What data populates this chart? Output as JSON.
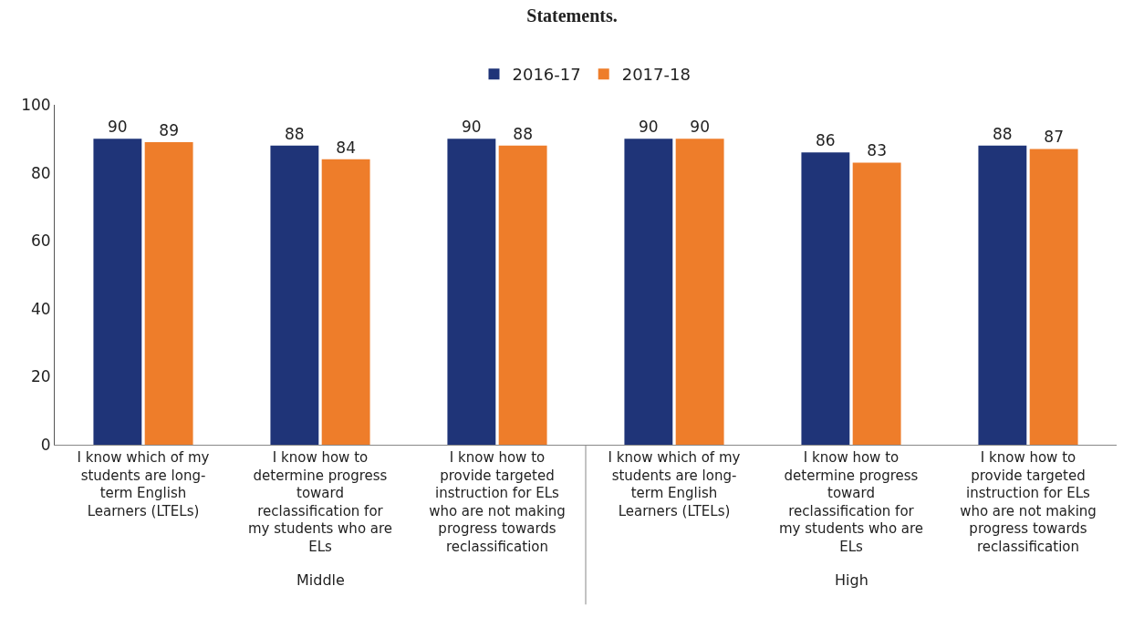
{
  "chart_data": {
    "type": "bar",
    "title": "Statements.",
    "categories": [
      "I know which of my students are long-term English Learners (LTELs)",
      "I know how to determine progress toward reclassification for my students who are ELs",
      "I know how to provide targeted instruction for ELs who are not making progress towards reclassification",
      "I know which of my students are long-term English Learners (LTELs)",
      "I know how to determine progress toward reclassification for my students who are ELs",
      "I know how to provide targeted instruction for ELs who are not making progress towards reclassification"
    ],
    "series": [
      {
        "name": "2016-17",
        "color": "#1f3478",
        "values": [
          90,
          88,
          90,
          90,
          86,
          88
        ]
      },
      {
        "name": "2017-18",
        "color": "#ee7d2a",
        "values": [
          89,
          84,
          88,
          90,
          83,
          87
        ]
      }
    ],
    "annotations": [
      "Middle",
      "High"
    ],
    "ylim": [
      0,
      100
    ],
    "yticks": [
      0,
      20,
      40,
      60,
      80,
      100
    ],
    "grid": false,
    "legend": "top",
    "data_labels": true
  }
}
